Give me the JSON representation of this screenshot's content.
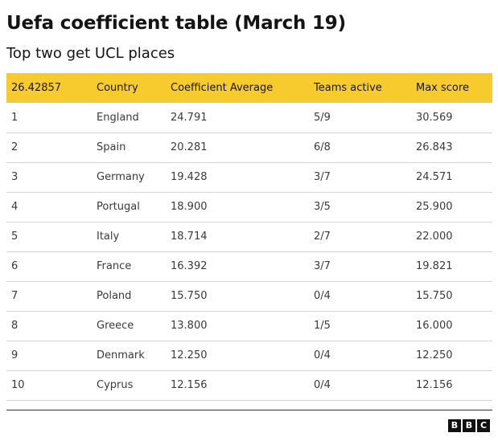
{
  "title": "Uefa coefficient table (March 19)",
  "subtitle": "Top two get UCL places",
  "table": {
    "headers": [
      "26.42857",
      "Country",
      "Coefficient Average",
      "Teams active",
      "Max score"
    ],
    "rows": [
      [
        "1",
        "England",
        "24.791",
        "5/9",
        "30.569"
      ],
      [
        "2",
        "Spain",
        "20.281",
        "6/8",
        "26.843"
      ],
      [
        "3",
        "Germany",
        "19.428",
        "3/7",
        "24.571"
      ],
      [
        "4",
        "Portugal",
        "18.900",
        "3/5",
        "25.900"
      ],
      [
        "5",
        "Italy",
        "18.714",
        "2/7",
        "22.000"
      ],
      [
        "6",
        "France",
        "16.392",
        "3/7",
        "19.821"
      ],
      [
        "7",
        "Poland",
        "15.750",
        "0/4",
        "15.750"
      ],
      [
        "8",
        "Greece",
        "13.800",
        "1/5",
        "16.000"
      ],
      [
        "9",
        "Denmark",
        "12.250",
        "0/4",
        "12.250"
      ],
      [
        "10",
        "Cyprus",
        "12.156",
        "0/4",
        "12.156"
      ]
    ]
  },
  "logo": {
    "letters": [
      "B",
      "B",
      "C"
    ]
  },
  "colors": {
    "header_background": "#f7cb2d",
    "text": "#141414",
    "row_divider": "#d6d6d6"
  }
}
